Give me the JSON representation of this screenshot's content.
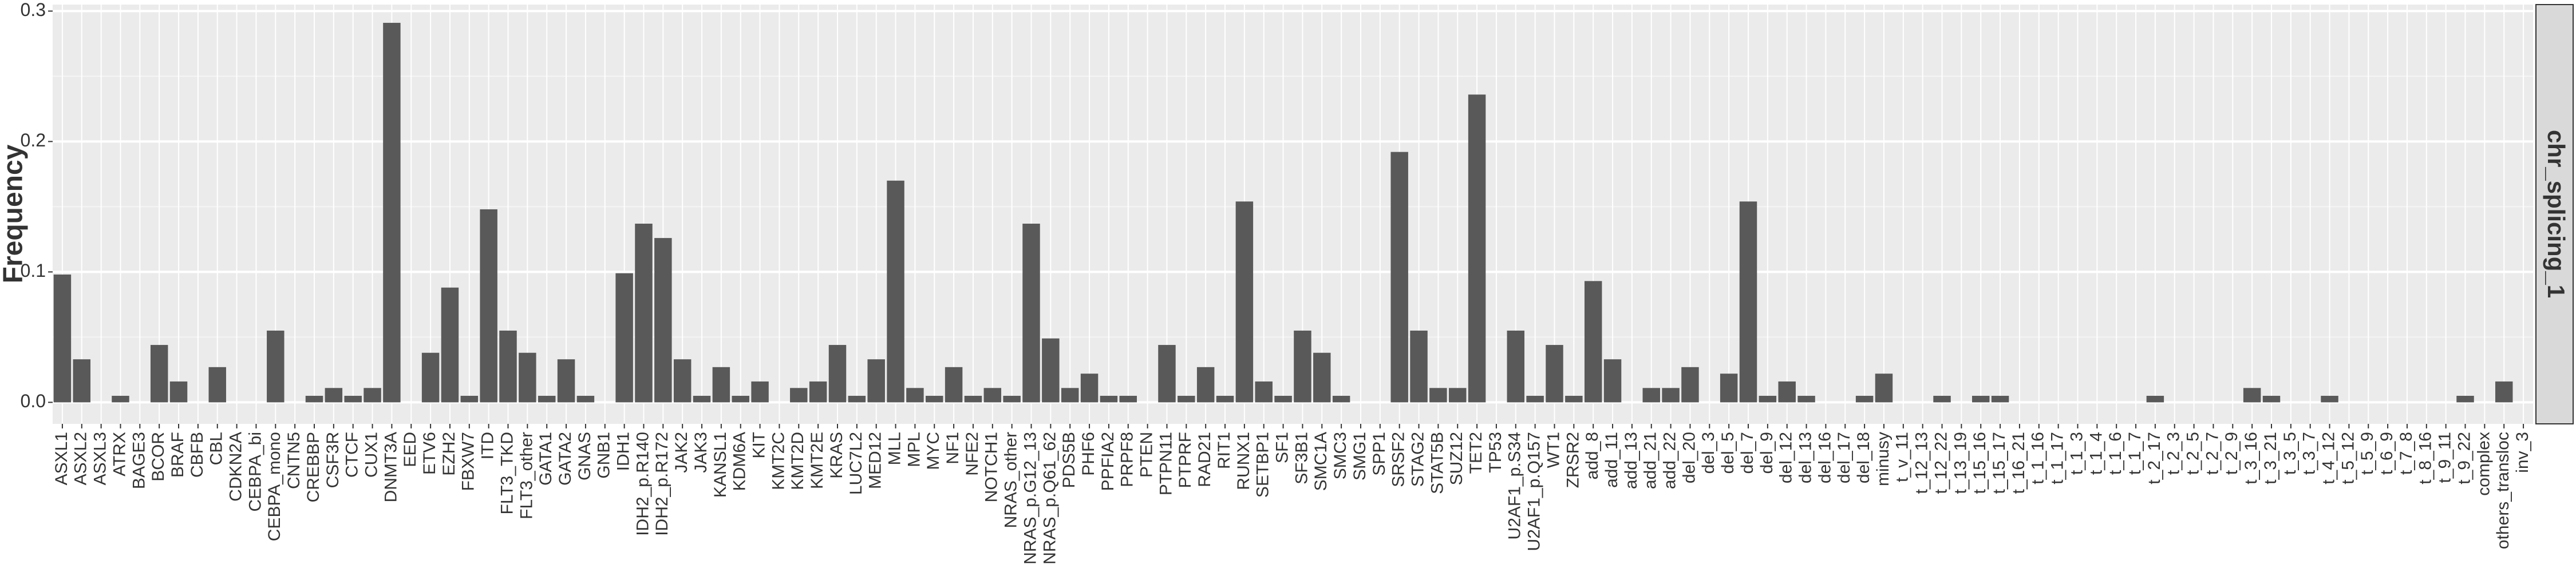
{
  "chart_data": {
    "type": "bar",
    "y_label": "Frequency",
    "facet_label": "chr_splicing_1",
    "color": "#595959",
    "grid": true,
    "ylim": [
      -0.0165,
      0.305
    ],
    "yticks": [
      {
        "value": 0,
        "label": "0.0"
      },
      0.1,
      0.2,
      0.3
    ],
    "categories": [
      "ASXL1",
      "ASXL2",
      "ASXL3",
      "ATRX",
      "BAGE3",
      "BCOR",
      "BRAF",
      "CBFB",
      "CBL",
      "CDKN2A",
      "CEBPA_bi",
      "CEBPA_mono",
      "CNTN5",
      "CREBBP",
      "CSF3R",
      "CTCF",
      "CUX1",
      "DNMT3A",
      "EED",
      "ETV6",
      "EZH2",
      "FBXW7",
      "ITD",
      "FLT3_TKD",
      "FLT3_other",
      "GATA1",
      "GATA2",
      "GNAS",
      "GNB1",
      "IDH1",
      "IDH2_p.R140",
      "IDH2_p.R172",
      "JAK2",
      "JAK3",
      "KANSL1",
      "KDM6A",
      "KIT",
      "KMT2C",
      "KMT2D",
      "KMT2E",
      "KRAS",
      "LUC7L2",
      "MED12",
      "MLL",
      "MPL",
      "MYC",
      "NF1",
      "NFE2",
      "NOTCH1",
      "NRAS_other",
      "NRAS_p.G12_13",
      "NRAS_p.Q61_62",
      "PDS5B",
      "PHF6",
      "PPFIA2",
      "PRPF8",
      "PTEN",
      "PTPN11",
      "PTPRF",
      "RAD21",
      "RIT1",
      "RUNX1",
      "SETBP1",
      "SF1",
      "SF3B1",
      "SMC1A",
      "SMC3",
      "SMG1",
      "SPP1",
      "SRSF2",
      "STAG2",
      "STAT5B",
      "SUZ12",
      "TET2",
      "TP53",
      "U2AF1_p.S34",
      "U2AF1_p.Q157",
      "WT1",
      "ZRSR2",
      "add_8",
      "add_11",
      "add_13",
      "add_21",
      "add_22",
      "del_20",
      "del_3",
      "del_5",
      "del_7",
      "del_9",
      "del_12",
      "del_13",
      "del_16",
      "del_17",
      "del_18",
      "minusy",
      "t_v_11",
      "t_12_13",
      "t_12_22",
      "t_13_19",
      "t_15_16",
      "t_15_17",
      "t_16_21",
      "t_1_16",
      "t_1_17",
      "t_1_3",
      "t_1_4",
      "t_1_6",
      "t_1_7",
      "t_2_17",
      "t_2_3",
      "t_2_5",
      "t_2_7",
      "t_2_9",
      "t_3_16",
      "t_3_21",
      "t_3_5",
      "t_3_7",
      "t_4_12",
      "t_5_12",
      "t_5_9",
      "t_6_9",
      "t_7_8",
      "t_8_16",
      "t_9_11",
      "t_9_22",
      "complex",
      "others_transloc",
      "inv_3"
    ],
    "values": [
      0.098,
      0.033,
      0,
      0.005,
      0,
      0.044,
      0.016,
      0,
      0.027,
      0,
      0,
      0.055,
      0,
      0.005,
      0.011,
      0.005,
      0.011,
      0.291,
      0,
      0.038,
      0.088,
      0.005,
      0.148,
      0.055,
      0.038,
      0.005,
      0.033,
      0.005,
      0,
      0.099,
      0.137,
      0.126,
      0.033,
      0.005,
      0.027,
      0.005,
      0.016,
      0,
      0.011,
      0.016,
      0.044,
      0.005,
      0.033,
      0.17,
      0.011,
      0.005,
      0.027,
      0.005,
      0.011,
      0.005,
      0.137,
      0.049,
      0.011,
      0.022,
      0.005,
      0.005,
      0,
      0.044,
      0.005,
      0.027,
      0.005,
      0.154,
      0.016,
      0.005,
      0.055,
      0.038,
      0.005,
      0,
      0,
      0.192,
      0.055,
      0.011,
      0.011,
      0.236,
      0,
      0.055,
      0.005,
      0.044,
      0.005,
      0.093,
      0.033,
      0,
      0.011,
      0.011,
      0.027,
      0,
      0.022,
      0.154,
      0.005,
      0.016,
      0.005,
      0,
      0,
      0.005,
      0.022,
      0,
      0,
      0.005,
      0,
      0.005,
      0.005,
      0,
      0,
      0,
      0,
      0,
      0,
      0,
      0.005,
      0,
      0,
      0,
      0,
      0.011,
      0.005,
      0,
      0,
      0.005,
      0,
      0,
      0,
      0,
      0,
      0,
      0.005,
      0,
      0.016,
      0
    ]
  }
}
